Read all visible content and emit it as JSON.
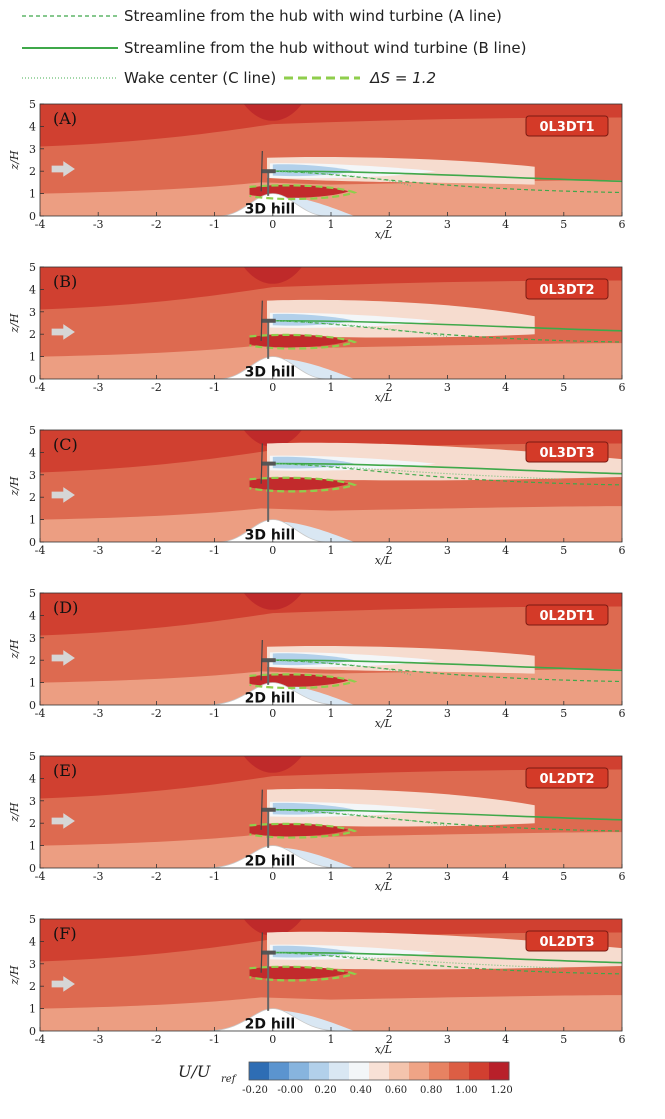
{
  "legend": [
    {
      "label": "Streamline from the hub with wind turbine (A line)",
      "style": "dashed"
    },
    {
      "label": "Streamline from the hub without wind turbine (B line)",
      "style": "solid"
    },
    {
      "label": "Wake center (C line)",
      "style": "dotted"
    },
    {
      "label": "ΔS = 1.2",
      "style": "thick-dashed"
    }
  ],
  "colors": {
    "streamline": "#3fa84a",
    "contour_line": "#8fce4c",
    "arrow": "#d6d6d6",
    "tag_fill": "#d43a28",
    "tag_border": "#7a1a12"
  },
  "axes": {
    "xlabel": "x/L",
    "ylabel": "z/H",
    "xticks": [
      "-4",
      "-3",
      "-2",
      "-1",
      "0",
      "1",
      "2",
      "3",
      "4",
      "5",
      "6"
    ],
    "yticks": [
      "0",
      "1",
      "2",
      "3",
      "4",
      "5"
    ]
  },
  "chart_data": [
    {
      "type": "heatmap",
      "panel_label": "(A)",
      "case": "0L3DT1",
      "hill": "3D hill",
      "hub_height": 2,
      "xlim": [
        -4,
        6
      ],
      "ylim": [
        0,
        5
      ],
      "xlabel": "x/L",
      "ylabel": "z/H"
    },
    {
      "type": "heatmap",
      "panel_label": "(B)",
      "case": "0L3DT2",
      "hill": "3D hill",
      "hub_height": 2.6,
      "xlim": [
        -4,
        6
      ],
      "ylim": [
        0,
        5
      ],
      "xlabel": "x/L",
      "ylabel": "z/H"
    },
    {
      "type": "heatmap",
      "panel_label": "(C)",
      "case": "0L3DT3",
      "hill": "3D hill",
      "hub_height": 3.5,
      "xlim": [
        -4,
        6
      ],
      "ylim": [
        0,
        5
      ],
      "xlabel": "x/L",
      "ylabel": "z/H"
    },
    {
      "type": "heatmap",
      "panel_label": "(D)",
      "case": "0L2DT1",
      "hill": "2D hill",
      "hub_height": 2,
      "xlim": [
        -4,
        6
      ],
      "ylim": [
        0,
        5
      ],
      "xlabel": "x/L",
      "ylabel": "z/H"
    },
    {
      "type": "heatmap",
      "panel_label": "(E)",
      "case": "0L2DT2",
      "hill": "2D hill",
      "hub_height": 2.6,
      "xlim": [
        -4,
        6
      ],
      "ylim": [
        0,
        5
      ],
      "xlabel": "x/L",
      "ylabel": "z/H"
    },
    {
      "type": "heatmap",
      "panel_label": "(F)",
      "case": "0L2DT3",
      "hill": "2D hill",
      "hub_height": 3.5,
      "xlim": [
        -4,
        6
      ],
      "ylim": [
        0,
        5
      ],
      "xlabel": "x/L",
      "ylabel": "z/H"
    }
  ],
  "colorbar": {
    "label_main": "U/U",
    "label_sub": "ref",
    "ticks": [
      "-0.20",
      "-0.00",
      "0.20",
      "0.40",
      "0.60",
      "0.80",
      "1.00",
      "1.20"
    ],
    "colors": [
      "#2e6db4",
      "#5b94cf",
      "#87b4de",
      "#b2d0ea",
      "#d9e7f3",
      "#f3f6f8",
      "#f8e1d6",
      "#f4c4ad",
      "#efa486",
      "#e78262",
      "#dc5e44",
      "#d13f30",
      "#b8202a"
    ]
  }
}
